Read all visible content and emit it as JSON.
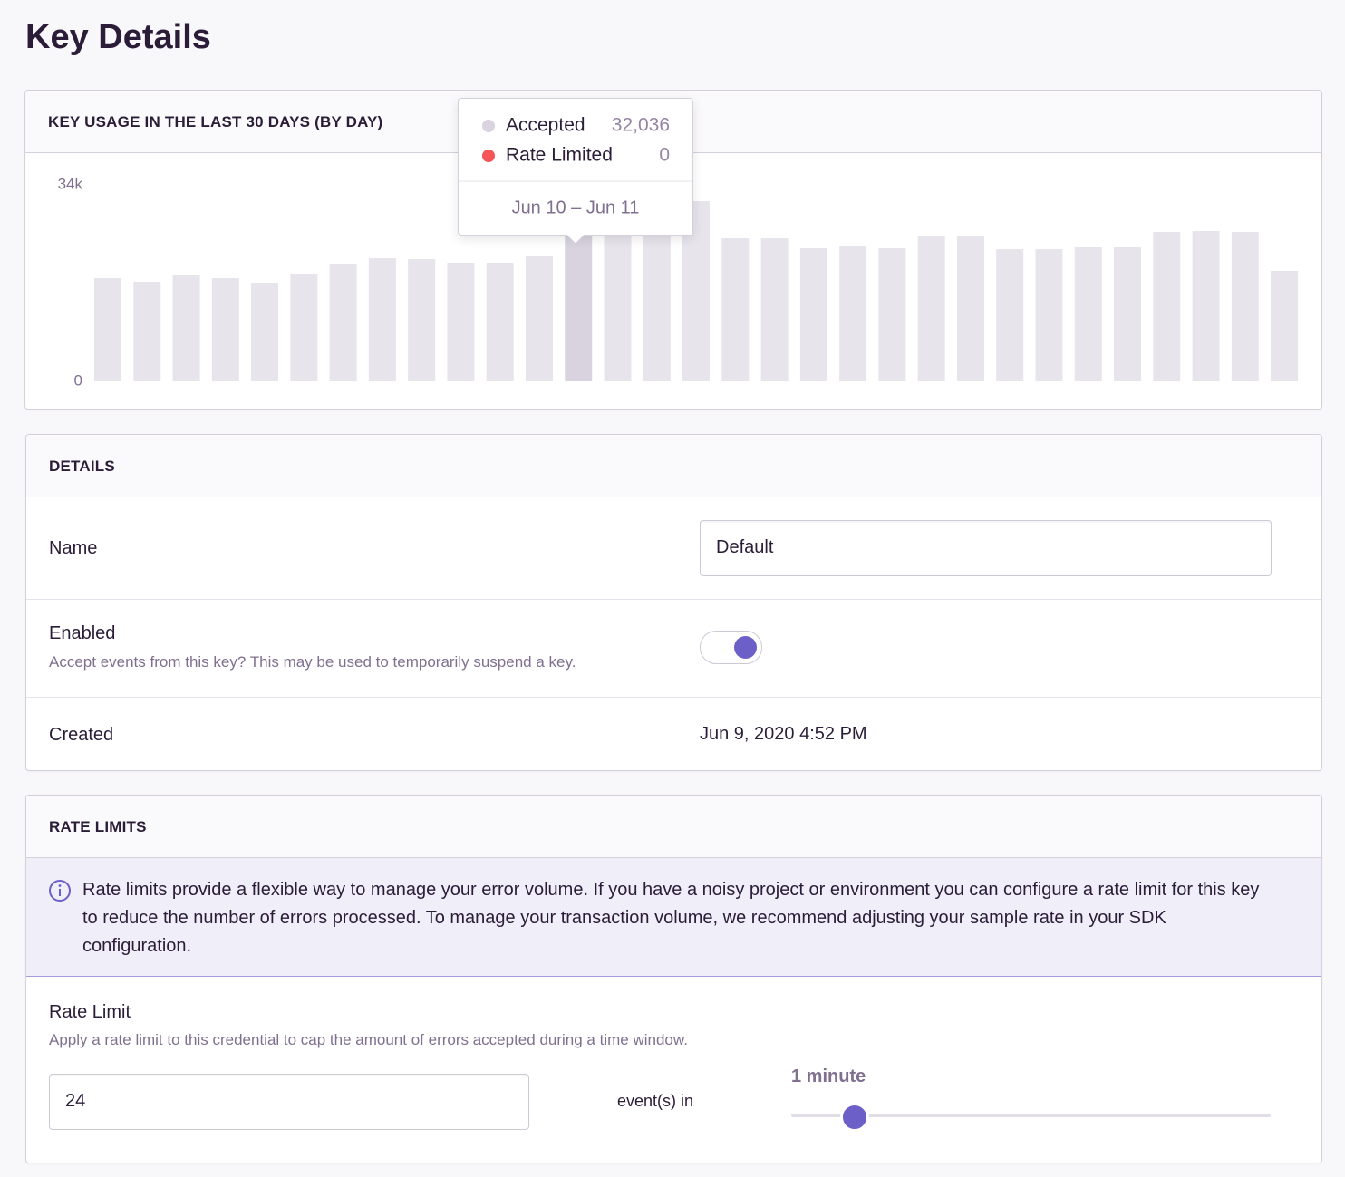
{
  "title": "Key Details",
  "usage_panel": {
    "heading": "KEY USAGE IN THE LAST 30 DAYS (BY DAY)"
  },
  "chart_data": {
    "type": "bar",
    "values": [
      17860,
      17235,
      18490,
      17860,
      17080,
      18645,
      20370,
      21310,
      21150,
      20525,
      20525,
      21620,
      32036,
      30500,
      30500,
      31180,
      24760,
      24760,
      23030,
      23350,
      23030,
      25225,
      25225,
      22875,
      22875,
      23190,
      23190,
      25850,
      26010,
      25850,
      19115
    ],
    "colors": [
      "#e7e4ec",
      "#e7e4ec",
      "#e7e4ec",
      "#e7e4ec",
      "#e7e4ec",
      "#e7e4ec",
      "#e7e4ec",
      "#e7e4ec",
      "#e7e4ec",
      "#e7e4ec",
      "#e7e4ec",
      "#e7e4ec",
      "#d8d3de",
      "#e7e4ec",
      "#e7e4ec",
      "#e7e4ec",
      "#e7e4ec",
      "#e7e4ec",
      "#e7e4ec",
      "#e7e4ec",
      "#e7e4ec",
      "#e7e4ec",
      "#e7e4ec",
      "#e7e4ec",
      "#e7e4ec",
      "#e7e4ec",
      "#e7e4ec",
      "#e7e4ec",
      "#e7e4ec",
      "#e7e4ec",
      "#e7e4ec"
    ],
    "ylim": [
      0,
      34000
    ],
    "yticks": [
      0,
      {
        "value": 34000,
        "label": "34k"
      }
    ]
  },
  "tooltip": {
    "rows": [
      {
        "name": "Accepted",
        "value": "32,036",
        "color": "#d9d4df"
      },
      {
        "name": "Rate Limited",
        "value": "0",
        "color": "#f55459"
      }
    ],
    "range": "Jun 10 – Jun 11"
  },
  "details": {
    "heading": "DETAILS",
    "name": {
      "label": "Name",
      "value": "Default"
    },
    "enabled": {
      "label": "Enabled",
      "help": "Accept events from this key? This may be used to temporarily suspend a key.",
      "value": true
    },
    "created": {
      "label": "Created",
      "value": "Jun 9, 2020 4:52 PM"
    }
  },
  "rate_limits": {
    "heading": "RATE LIMITS",
    "alert": "Rate limits provide a flexible way to manage your error volume. If you have a noisy project or environment you can configure a rate limit for this key to reduce the number of errors processed. To manage your transaction volume, we recommend adjusting your sample rate in your SDK configuration.",
    "rate_limit": {
      "label": "Rate Limit",
      "help": "Apply a rate limit to this credential to cap the amount of errors accepted during a time window.",
      "count": "24",
      "unit": "event(s) in",
      "window": "1 minute"
    }
  }
}
